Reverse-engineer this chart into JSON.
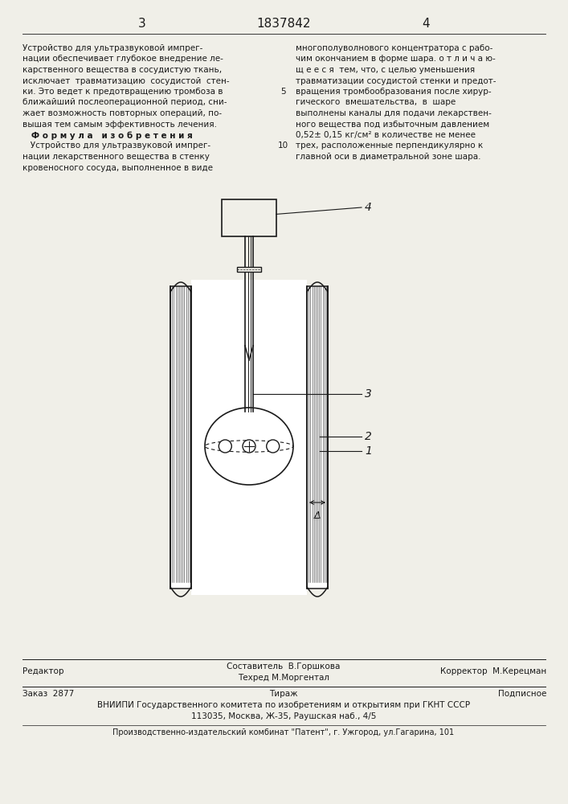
{
  "page_number_left": "3",
  "patent_number": "1837842",
  "page_number_right": "4",
  "left_col_lines": [
    "Устройство для ультразвуковой импрег-",
    "нации обеспечивает глубокое внедрение ле-",
    "карственного вещества в сосудистую ткань,",
    "исключает  травматизацию  сосудистой  стен-",
    "ки. Это ведет к предотвращению тромбоза в",
    "ближайший послеоперационной период, сни-",
    "жает возможность повторных операций, по-",
    "вышая тем самым эффективность лечения.",
    "   Ф о р м у л а   и з о б р е т е н и я",
    "   Устройство для ультразвуковой импрег-",
    "нации лекарственного вещества в стенку",
    "кровеносного сосуда, выполненное в виде"
  ],
  "right_col_lines": [
    "многополуволнового концентратора с рабо-",
    "чим окончанием в форме шара. о т л и ч а ю-",
    "щ е е с я  тем, что, с целью уменьшения",
    "травматизации сосудистой стенки и предот-",
    "вращения тромбообразования после хирур-",
    "гического  вмешательства,  в  шаре",
    "выполнены каналы для подачи лекарствен-",
    "ного вещества под избыточным давлением",
    "0,52± 0,15 кг/см² в количестве не менее",
    "трех, расположенные перпендикулярно к",
    "главной оси в диаметральной зоне шара."
  ],
  "line_number_5": "5",
  "line_number_10": "10",
  "footer_sestavitel": "Составитель  В.Горшкова",
  "footer_tehred": "Техред М.Моргентал",
  "footer_redaktor": "Редактор",
  "footer_korrektor": "Корректор  М.Керецман",
  "footer_zakaz": "Заказ  2877",
  "footer_tirazh": "Тираж",
  "footer_podpisnoe": "Подписное",
  "footer_vniipи": "ВНИИПИ Государственного комитета по изобретениям и открытиям при ГКНТ СССР",
  "footer_addr": "113035, Москва, Ж-35, Раушская наб., 4/5",
  "footer_patent": "Производственно-издательский комбинат \"Патент\", г. Ужгород, ул.Гагарина, 101",
  "bg_color": "#f0efe8",
  "text_color": "#1a1a1a",
  "line_color": "#1a1a1a"
}
